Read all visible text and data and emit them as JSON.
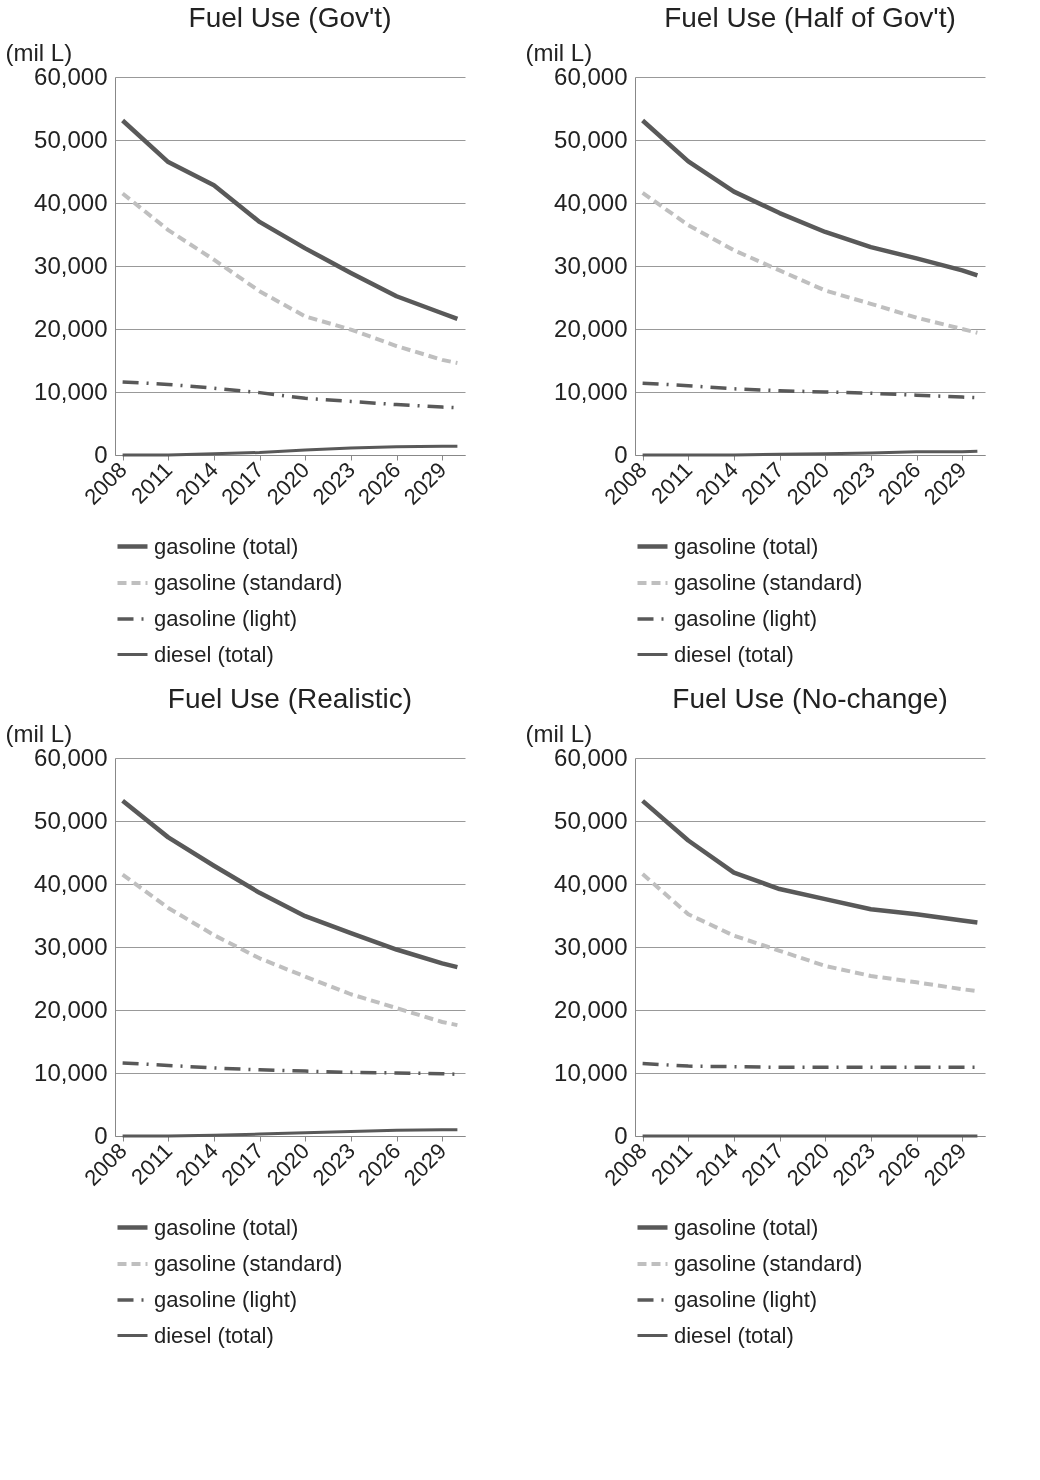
{
  "chart_data": [
    {
      "type": "line",
      "title": "Fuel Use (Gov't)",
      "ylabel": "(mil L)",
      "x": [
        2008,
        2011,
        2014,
        2017,
        2020,
        2023,
        2026,
        2029,
        2030
      ],
      "xlim": [
        2007.5,
        2030.5
      ],
      "xticks": [
        2008,
        2011,
        2014,
        2017,
        2020,
        2023,
        2026,
        2029
      ],
      "ylim": [
        0,
        60000
      ],
      "yticks": [
        {
          "value": 0,
          "label": "0"
        },
        {
          "value": 10000,
          "label": "10,000"
        },
        {
          "value": 20000,
          "label": "20,000"
        },
        {
          "value": 30000,
          "label": "30,000"
        },
        {
          "value": 40000,
          "label": "40,000"
        },
        {
          "value": 50000,
          "label": "50,000"
        },
        {
          "value": 60000,
          "label": "60,000"
        }
      ],
      "grid": "y",
      "legend": "bottom",
      "marker": "none",
      "series": [
        {
          "name": "gasoline (total)",
          "color": "#595959",
          "line_style": "solid",
          "values": [
            53100,
            46500,
            42800,
            37000,
            32800,
            28900,
            25200,
            22500,
            21600
          ]
        },
        {
          "name": "gasoline (standard)",
          "color": "#bfbfbf",
          "line_style": "dashed",
          "values": [
            41500,
            35700,
            31000,
            26000,
            22000,
            19900,
            17300,
            15100,
            14600
          ]
        },
        {
          "name": "gasoline (light)",
          "color": "#595959",
          "line_style": "dashdot",
          "values": [
            11600,
            11200,
            10600,
            9900,
            9000,
            8500,
            8000,
            7600,
            7500
          ]
        },
        {
          "name": "diesel (total)",
          "color": "#595959",
          "line_style": "solid",
          "values": [
            0,
            0,
            200,
            400,
            800,
            1100,
            1300,
            1400,
            1400
          ]
        }
      ]
    },
    {
      "type": "line",
      "title": "Fuel Use (Half of Gov't)",
      "ylabel": "(mil L)",
      "x": [
        2008,
        2011,
        2014,
        2017,
        2020,
        2023,
        2026,
        2029,
        2030
      ],
      "xlim": [
        2007.5,
        2030.5
      ],
      "xticks": [
        2008,
        2011,
        2014,
        2017,
        2020,
        2023,
        2026,
        2029
      ],
      "ylim": [
        0,
        60000
      ],
      "yticks": [
        {
          "value": 0,
          "label": "0"
        },
        {
          "value": 10000,
          "label": "10,000"
        },
        {
          "value": 20000,
          "label": "20,000"
        },
        {
          "value": 30000,
          "label": "30,000"
        },
        {
          "value": 40000,
          "label": "40,000"
        },
        {
          "value": 50000,
          "label": "50,000"
        },
        {
          "value": 60000,
          "label": "60,000"
        }
      ],
      "grid": "y",
      "legend": "bottom",
      "marker": "none",
      "series": [
        {
          "name": "gasoline (total)",
          "color": "#595959",
          "line_style": "solid",
          "values": [
            53100,
            46600,
            41800,
            38400,
            35400,
            33000,
            31200,
            29300,
            28500
          ]
        },
        {
          "name": "gasoline (standard)",
          "color": "#bfbfbf",
          "line_style": "dashed",
          "values": [
            41600,
            36500,
            32500,
            29300,
            26100,
            24000,
            21800,
            20000,
            19400
          ]
        },
        {
          "name": "gasoline (light)",
          "color": "#595959",
          "line_style": "dashdot",
          "values": [
            11400,
            11000,
            10500,
            10200,
            10000,
            9800,
            9500,
            9200,
            9100
          ]
        },
        {
          "name": "diesel (total)",
          "color": "#595959",
          "line_style": "solid",
          "values": [
            0,
            0,
            0,
            100,
            200,
            300,
            500,
            500,
            600
          ]
        }
      ]
    },
    {
      "type": "line",
      "title": "Fuel Use (Realistic)",
      "ylabel": "(mil L)",
      "x": [
        2008,
        2011,
        2014,
        2017,
        2020,
        2023,
        2026,
        2029,
        2030
      ],
      "xlim": [
        2007.5,
        2030.5
      ],
      "xticks": [
        2008,
        2011,
        2014,
        2017,
        2020,
        2023,
        2026,
        2029
      ],
      "ylim": [
        0,
        60000
      ],
      "yticks": [
        {
          "value": 0,
          "label": "0"
        },
        {
          "value": 10000,
          "label": "10,000"
        },
        {
          "value": 20000,
          "label": "20,000"
        },
        {
          "value": 30000,
          "label": "30,000"
        },
        {
          "value": 40000,
          "label": "40,000"
        },
        {
          "value": 50000,
          "label": "50,000"
        },
        {
          "value": 60000,
          "label": "60,000"
        }
      ],
      "grid": "y",
      "legend": "bottom",
      "marker": "none",
      "series": [
        {
          "name": "gasoline (total)",
          "color": "#595959",
          "line_style": "solid",
          "values": [
            53200,
            47400,
            42900,
            38600,
            34900,
            32200,
            29600,
            27400,
            26800
          ]
        },
        {
          "name": "gasoline (standard)",
          "color": "#bfbfbf",
          "line_style": "dashed",
          "values": [
            41500,
            36200,
            31900,
            28200,
            25300,
            22500,
            20300,
            18100,
            17600
          ]
        },
        {
          "name": "gasoline (light)",
          "color": "#595959",
          "line_style": "dashdot",
          "values": [
            11600,
            11200,
            10800,
            10500,
            10300,
            10100,
            10000,
            9900,
            9800
          ]
        },
        {
          "name": "diesel (total)",
          "color": "#595959",
          "line_style": "solid",
          "values": [
            0,
            0,
            100,
            300,
            500,
            700,
            900,
            1000,
            1000
          ]
        }
      ]
    },
    {
      "type": "line",
      "title": "Fuel Use (No-change)",
      "ylabel": "(mil L)",
      "x": [
        2008,
        2011,
        2014,
        2017,
        2020,
        2023,
        2026,
        2029,
        2030
      ],
      "xlim": [
        2007.5,
        2030.5
      ],
      "xticks": [
        2008,
        2011,
        2014,
        2017,
        2020,
        2023,
        2026,
        2029
      ],
      "ylim": [
        0,
        60000
      ],
      "yticks": [
        {
          "value": 0,
          "label": "0"
        },
        {
          "value": 10000,
          "label": "10,000"
        },
        {
          "value": 20000,
          "label": "20,000"
        },
        {
          "value": 30000,
          "label": "30,000"
        },
        {
          "value": 40000,
          "label": "40,000"
        },
        {
          "value": 50000,
          "label": "50,000"
        },
        {
          "value": 60000,
          "label": "60,000"
        }
      ],
      "grid": "y",
      "legend": "bottom",
      "marker": "none",
      "series": [
        {
          "name": "gasoline (total)",
          "color": "#595959",
          "line_style": "solid",
          "values": [
            53200,
            46900,
            41800,
            39200,
            37600,
            36000,
            35200,
            34200,
            33900
          ]
        },
        {
          "name": "gasoline (standard)",
          "color": "#bfbfbf",
          "line_style": "dashed",
          "values": [
            41600,
            35200,
            31800,
            29400,
            27000,
            25400,
            24400,
            23300,
            23000
          ]
        },
        {
          "name": "gasoline (light)",
          "color": "#595959",
          "line_style": "dashdot",
          "values": [
            11500,
            11100,
            11000,
            10900,
            10900,
            10900,
            10900,
            10900,
            10900
          ]
        },
        {
          "name": "diesel (total)",
          "color": "#595959",
          "line_style": "solid",
          "values": [
            0,
            0,
            0,
            0,
            0,
            0,
            0,
            0,
            0
          ]
        }
      ]
    }
  ]
}
